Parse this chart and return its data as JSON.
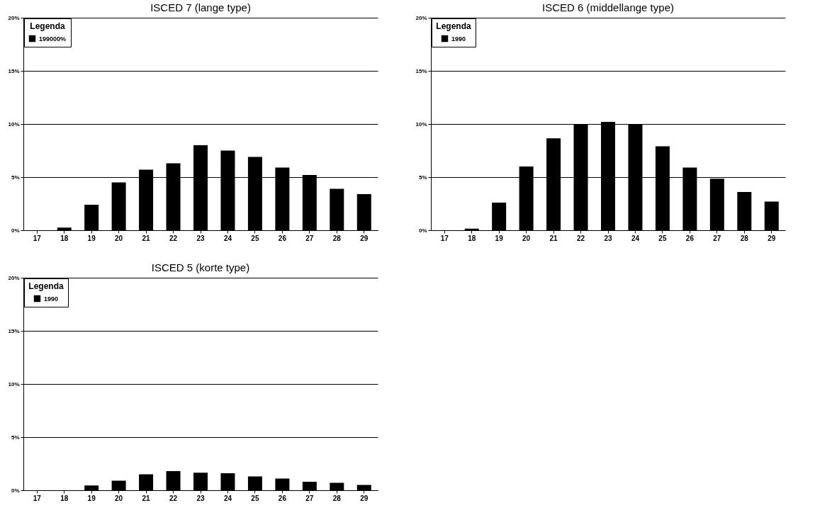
{
  "chart_data": [
    {
      "type": "bar",
      "title": "ISCED 7 (lange type)",
      "legend_title": "Legenda",
      "categories": [
        "17",
        "18",
        "19",
        "20",
        "21",
        "22",
        "23",
        "24",
        "25",
        "26",
        "27",
        "28",
        "29"
      ],
      "series": [
        {
          "name": "199000%",
          "color": "#000000",
          "values": [
            0,
            0.25,
            2.4,
            4.5,
            5.7,
            6.3,
            8.0,
            7.5,
            6.9,
            5.9,
            5.2,
            3.9,
            3.4
          ]
        }
      ],
      "ylim": [
        0,
        20
      ],
      "yticks": [
        {
          "value": 0,
          "label": "0%"
        },
        {
          "value": 5,
          "label": "5%"
        },
        {
          "value": 10,
          "label": "10%"
        },
        {
          "value": 15,
          "label": "15%"
        },
        {
          "value": 20,
          "label": "20%"
        }
      ],
      "grid": "y",
      "legend": "top left"
    },
    {
      "type": "bar",
      "title": "ISCED 6 (middellange type)",
      "legend_title": "Legenda",
      "categories": [
        "17",
        "18",
        "19",
        "20",
        "21",
        "22",
        "23",
        "24",
        "25",
        "26",
        "27",
        "28",
        "29"
      ],
      "series": [
        {
          "name": "1990",
          "color": "#000000",
          "values": [
            0,
            0.15,
            2.6,
            6.0,
            8.65,
            10.0,
            10.2,
            10.0,
            7.9,
            5.9,
            4.85,
            3.6,
            2.7
          ]
        }
      ],
      "ylim": [
        0,
        20
      ],
      "yticks": [
        {
          "value": 0,
          "label": "0%"
        },
        {
          "value": 5,
          "label": "5%"
        },
        {
          "value": 10,
          "label": "10%"
        },
        {
          "value": 15,
          "label": "15%"
        },
        {
          "value": 20,
          "label": "20%"
        }
      ],
      "grid": "y",
      "legend": "top left"
    },
    {
      "type": "bar",
      "title": "ISCED 5 (korte type)",
      "legend_title": "Legenda",
      "categories": [
        "17",
        "18",
        "19",
        "20",
        "21",
        "22",
        "23",
        "24",
        "25",
        "26",
        "27",
        "28",
        "29"
      ],
      "series": [
        {
          "name": "1990",
          "color": "#000000",
          "values": [
            0,
            0,
            0.45,
            0.9,
            1.5,
            1.8,
            1.65,
            1.6,
            1.3,
            1.1,
            0.8,
            0.7,
            0.5
          ]
        }
      ],
      "ylim": [
        0,
        20
      ],
      "yticks": [
        {
          "value": 0,
          "label": "0%"
        },
        {
          "value": 5,
          "label": "5%"
        },
        {
          "value": 10,
          "label": "10%"
        },
        {
          "value": 15,
          "label": "15%"
        },
        {
          "value": 20,
          "label": "20%"
        }
      ],
      "grid": "y",
      "legend": "top left"
    }
  ]
}
